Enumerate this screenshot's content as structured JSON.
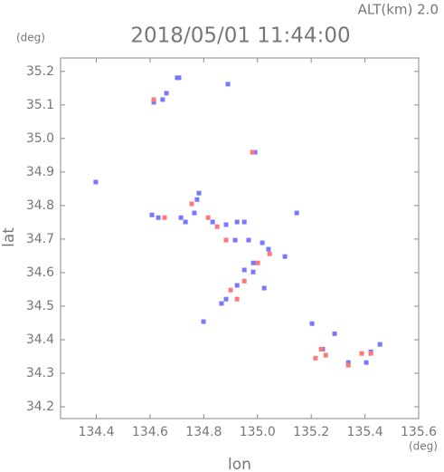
{
  "chart_data": {
    "type": "scatter",
    "title": "2018/05/01 11:44:00",
    "subtitle": "ALT(km) 2.0",
    "x_label": "lon",
    "y_label": "lat",
    "x_unit": "(deg)",
    "y_unit": "(deg)",
    "xlim": [
      134.267,
      135.6
    ],
    "ylim": [
      34.165,
      35.24
    ],
    "xticks": [
      134.4,
      134.6,
      134.8,
      {
        "value": 135.0,
        "label": "135.0"
      },
      135.2,
      135.4,
      135.6
    ],
    "yticks": [
      34.2,
      34.3,
      34.4,
      34.5,
      34.6,
      34.7,
      34.8,
      34.9,
      {
        "value": 35.0,
        "label": "35.0"
      },
      35.1,
      35.2
    ],
    "grid": false,
    "series": [
      {
        "color": "#7878ff",
        "x": [
          134.701,
          134.708,
          134.661,
          134.647,
          134.614,
          134.89,
          134.991,
          134.398,
          134.782,
          134.775,
          134.607,
          134.631,
          134.715,
          134.732,
          134.765,
          134.833,
          134.883,
          134.924,
          134.951,
          134.917,
          134.967,
          135.018,
          135.041,
          134.984,
          134.951,
          134.924,
          134.883,
          134.866,
          134.984,
          135.146,
          135.102,
          134.799,
          135.203,
          135.243,
          135.287,
          135.422,
          135.456,
          135.405,
          135.338,
          135.025
        ],
        "y": [
          35.181,
          35.181,
          35.135,
          35.116,
          35.108,
          35.162,
          34.959,
          34.87,
          34.837,
          34.818,
          34.772,
          34.764,
          34.764,
          34.751,
          34.778,
          34.751,
          34.743,
          34.751,
          34.751,
          34.697,
          34.697,
          34.689,
          34.67,
          34.629,
          34.608,
          34.562,
          34.521,
          34.508,
          34.602,
          34.778,
          34.648,
          34.454,
          34.448,
          34.372,
          34.418,
          34.364,
          34.386,
          34.332,
          34.332,
          34.554
        ]
      },
      {
        "color": "#ff7878",
        "x": [
          134.981,
          134.614,
          134.755,
          134.654,
          134.816,
          134.883,
          134.85,
          135.001,
          134.951,
          134.924,
          134.9,
          135.216,
          135.254,
          135.388,
          135.422,
          135.338,
          135.237,
          135.045
        ],
        "y": [
          34.959,
          35.116,
          34.805,
          34.764,
          34.764,
          34.697,
          34.737,
          34.629,
          34.575,
          34.521,
          34.548,
          34.345,
          34.354,
          34.359,
          34.359,
          34.324,
          34.372,
          34.656
        ]
      }
    ]
  }
}
